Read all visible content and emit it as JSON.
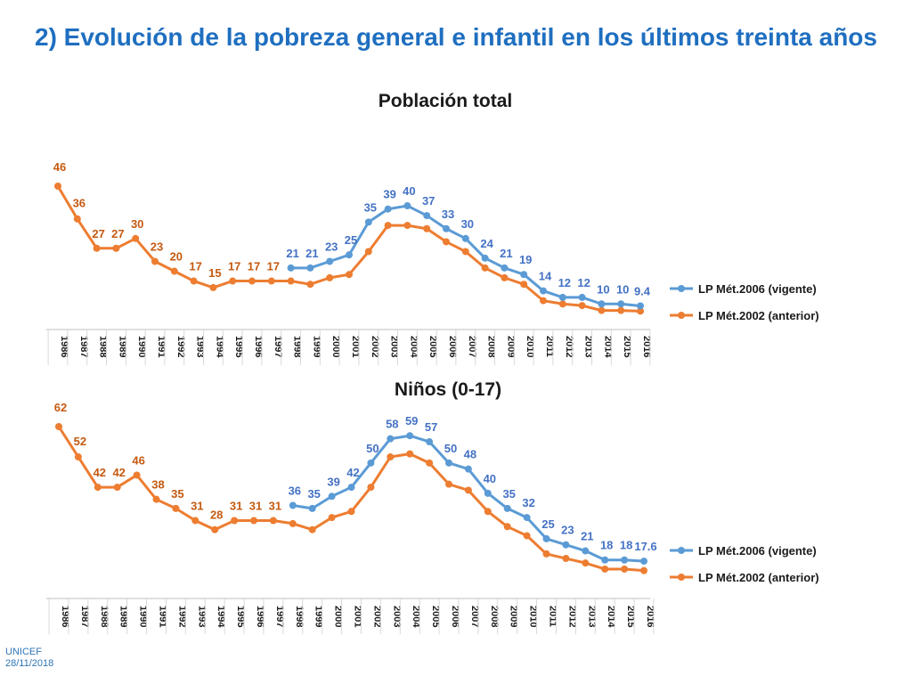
{
  "slide": {
    "title": "2) Evolución de la pobreza general e infantil en los últimos treinta años"
  },
  "footer": {
    "org": "UNICEF",
    "date": "28/11/2018"
  },
  "colors": {
    "vigente": "#5b9bd5",
    "anterior": "#ed7d31",
    "title": "#1f6fc0",
    "vigente_label": "#4472c4",
    "anterior_label": "#c55a11"
  },
  "chart_data": [
    {
      "type": "line",
      "title": "Población total",
      "categories": [
        "1986",
        "1987",
        "1988",
        "1989",
        "1990",
        "1991",
        "1992",
        "1993",
        "1994",
        "1995",
        "1996",
        "1997",
        "1998",
        "1999",
        "2000",
        "2001",
        "2002",
        "2003",
        "2004",
        "2005",
        "2006",
        "2007",
        "2008",
        "2009",
        "2010",
        "2011",
        "2012",
        "2013",
        "2014",
        "2015",
        "2016"
      ],
      "series": [
        {
          "name": "LP Mét.2006 (vigente)",
          "values": [
            null,
            null,
            null,
            null,
            null,
            null,
            null,
            null,
            null,
            null,
            null,
            null,
            21,
            21,
            23,
            25,
            35,
            39,
            40,
            37,
            33,
            30,
            24,
            21,
            19,
            14,
            12,
            12,
            10,
            10,
            9.4
          ]
        },
        {
          "name": "LP Mét.2002 (anterior)",
          "values": [
            46,
            36,
            27,
            27,
            30,
            23,
            20,
            17,
            15,
            17,
            17,
            17,
            17,
            16,
            18,
            19,
            26,
            34,
            34,
            33,
            29,
            26,
            21,
            18,
            16,
            11,
            10,
            9.5,
            8,
            8,
            7.8
          ]
        }
      ],
      "labels_vigente": [
        null,
        null,
        null,
        null,
        null,
        null,
        null,
        null,
        null,
        null,
        null,
        null,
        "21",
        "21",
        "23",
        "25",
        "35",
        "39",
        "40",
        "37",
        "33",
        "30",
        "24",
        "21",
        "19",
        "14",
        "12",
        "12",
        "10",
        "10",
        "9.4"
      ],
      "labels_anterior": [
        "46",
        "36",
        "27",
        "27",
        "30",
        "23",
        "20",
        "17",
        "15",
        "17",
        "17",
        "17",
        null,
        null,
        null,
        null,
        null,
        null,
        null,
        null,
        null,
        null,
        null,
        null,
        null,
        null,
        null,
        null,
        null,
        null,
        null
      ],
      "ylim": [
        0,
        55
      ],
      "legend": "right"
    },
    {
      "type": "line",
      "title": "Niños (0-17)",
      "categories": [
        "1986",
        "1987",
        "1988",
        "1989",
        "1990",
        "1991",
        "1992",
        "1993",
        "1994",
        "1995",
        "1996",
        "1997",
        "1998",
        "1999",
        "2000",
        "2001",
        "2002",
        "2003",
        "2004",
        "2005",
        "2006",
        "2007",
        "2008",
        "2009",
        "2010",
        "2011",
        "2012",
        "2013",
        "2014",
        "2015",
        "2016"
      ],
      "series": [
        {
          "name": "LP Mét.2006 (vigente)",
          "values": [
            null,
            null,
            null,
            null,
            null,
            null,
            null,
            null,
            null,
            null,
            null,
            null,
            36,
            35,
            39,
            42,
            50,
            58,
            59,
            57,
            50,
            48,
            40,
            35,
            32,
            25,
            23,
            21,
            18,
            18,
            17.6
          ]
        },
        {
          "name": "LP Mét.2002 (anterior)",
          "values": [
            62,
            52,
            42,
            42,
            46,
            38,
            35,
            31,
            28,
            31,
            31,
            31,
            30,
            28,
            32,
            34,
            42,
            52,
            53,
            50,
            43,
            41,
            34,
            29,
            26,
            20,
            18.5,
            17,
            15,
            15,
            14.5
          ]
        }
      ],
      "labels_vigente": [
        null,
        null,
        null,
        null,
        null,
        null,
        null,
        null,
        null,
        null,
        null,
        null,
        "36",
        "35",
        "39",
        "42",
        "50",
        "58",
        "59",
        "57",
        "50",
        "48",
        "40",
        "35",
        "32",
        "25",
        "23",
        "21",
        "18",
        "18",
        "17.6"
      ],
      "labels_anterior": [
        "62",
        "52",
        "42",
        "42",
        "46",
        "38",
        "35",
        "31",
        "28",
        "31",
        "31",
        "31",
        null,
        null,
        null,
        null,
        null,
        null,
        null,
        null,
        null,
        null,
        null,
        null,
        null,
        null,
        null,
        null,
        null,
        null,
        null
      ],
      "ylim": [
        0,
        75
      ],
      "legend": "right"
    }
  ]
}
